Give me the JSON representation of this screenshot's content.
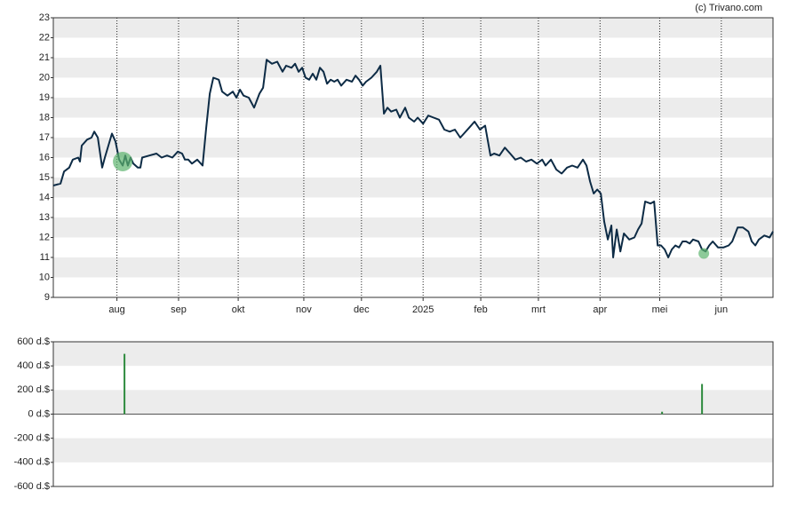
{
  "chart_data": [
    {
      "type": "line",
      "source": "(c) Trivano.com",
      "color": "#0d2b45",
      "marker_color": "#5cb46e",
      "x": [
        0,
        3.6,
        5.4,
        8.0,
        9.8,
        12.5,
        13.4,
        14.3,
        17.0,
        19.2,
        20.6,
        22.4,
        24.6,
        25.9,
        27.7,
        29.5,
        31.3,
        33.1,
        34.9,
        36.2,
        37.5,
        38.9,
        40.2,
        42.5,
        43.8,
        44.7,
        48.3,
        51.9,
        54.5,
        57.2,
        59.9,
        62.6,
        64.8,
        66.2,
        67.9,
        69.7,
        72.4,
        75.1,
        76.9,
        78.7,
        80.5,
        83.2,
        84.9,
        87.6,
        90.3,
        92.1,
        93.9,
        95.7,
        98.3,
        101.0,
        103.7,
        105.5,
        107.3,
        110.0,
        112.6,
        115.3,
        117.1,
        119.8,
        121.6,
        123.4,
        125.2,
        126.9,
        128.7,
        130.5,
        132.3,
        134.1,
        135.9,
        137.7,
        139.5,
        141.3,
        143.0,
        144.8,
        147.5,
        150.2,
        152.0,
        153.8,
        155.6,
        157.3,
        160.0,
        162.7,
        164.5,
        166.3,
        168.1,
        169.9,
        172.5,
        174.3,
        177.0,
        178.8,
        181.5,
        183.3,
        186.0,
        188.6,
        191.3,
        194.0,
        196.7,
        199.4,
        202.0,
        204.7,
        206.5,
        209.2,
        211.9,
        214.6,
        217.2,
        219.9,
        221.7,
        224.4,
        227.1,
        229.8,
        232.4,
        235.1,
        237.8,
        240.5,
        243.2,
        245.9,
        247.6,
        250.3,
        253.0,
        255.7,
        258.4,
        261.0,
        263.7,
        266.4,
        268.2,
        270.0,
        271.8,
        273.6,
        275.4,
        277.1,
        278.9,
        280.7,
        281.6,
        283.4,
        285.2,
        287.0,
        289.7,
        292.3,
        294.1,
        295.9,
        297.7,
        300.4,
        302.2,
        304.0,
        305.7,
        307.5,
        309.3,
        311.1,
        312.9,
        314.7,
        316.5,
        318.3,
        320.1,
        321.8,
        324.5,
        326.3,
        328.1,
        329.9,
        331.7,
        334.4,
        337.0,
        339.7,
        341.5,
        344.2,
        346.9,
        349.6,
        351.3,
        353.1,
        354.9,
        357.6,
        360.3,
        362
      ],
      "values": [
        14.6,
        14.7,
        15.3,
        15.5,
        15.9,
        16.0,
        15.8,
        16.6,
        16.9,
        17.0,
        17.3,
        17.0,
        15.5,
        16.0,
        16.6,
        17.2,
        16.8,
        15.9,
        15.6,
        16.1,
        15.6,
        16.0,
        15.7,
        15.5,
        15.5,
        16.0,
        16.1,
        16.2,
        16.0,
        16.1,
        16.0,
        16.3,
        16.2,
        15.9,
        15.9,
        15.7,
        15.9,
        15.6,
        17.5,
        19.2,
        20.0,
        19.9,
        19.3,
        19.1,
        19.3,
        19.0,
        19.4,
        19.1,
        19.0,
        18.5,
        19.2,
        19.5,
        20.9,
        20.7,
        20.8,
        20.3,
        20.6,
        20.5,
        20.7,
        20.3,
        20.5,
        20.0,
        19.9,
        20.2,
        19.9,
        20.5,
        20.3,
        19.7,
        19.9,
        19.8,
        19.9,
        19.6,
        19.9,
        19.8,
        20.1,
        19.9,
        19.6,
        19.8,
        20.0,
        20.3,
        20.6,
        18.2,
        18.5,
        18.3,
        18.4,
        18.0,
        18.5,
        18.0,
        17.8,
        18.0,
        17.7,
        18.1,
        18.0,
        17.9,
        17.4,
        17.3,
        17.4,
        17.0,
        17.2,
        17.5,
        17.8,
        17.4,
        17.6,
        16.1,
        16.2,
        16.1,
        16.5,
        16.2,
        15.9,
        16.0,
        15.8,
        15.9,
        15.7,
        15.9,
        15.6,
        15.9,
        15.4,
        15.2,
        15.5,
        15.6,
        15.5,
        15.9,
        15.6,
        14.8,
        14.2,
        14.4,
        14.2,
        12.8,
        11.9,
        12.6,
        11.0,
        12.4,
        11.3,
        12.2,
        11.9,
        12.0,
        12.4,
        12.7,
        13.8,
        13.7,
        13.8,
        11.6,
        11.6,
        11.4,
        11.0,
        11.4,
        11.6,
        11.5,
        11.8,
        11.8,
        11.7,
        11.9,
        11.8,
        11.4,
        11.3,
        11.6,
        11.8,
        11.5,
        11.5,
        11.6,
        11.8,
        12.5,
        12.5,
        12.3,
        11.8,
        11.6,
        11.9,
        12.1,
        12.0,
        12.3
      ],
      "markers": {
        "x": [
          34.9,
          327.2
        ],
        "values": [
          15.8,
          11.2
        ]
      },
      "xlim": [
        0,
        362
      ],
      "xticks": [
        {
          "value": 32,
          "label": "aug"
        },
        {
          "value": 63,
          "label": "sep"
        },
        {
          "value": 93,
          "label": "okt"
        },
        {
          "value": 126,
          "label": "nov"
        },
        {
          "value": 155,
          "label": "dec"
        },
        {
          "value": 186,
          "label": "2025"
        },
        {
          "value": 215,
          "label": "feb"
        },
        {
          "value": 244,
          "label": "mrt"
        },
        {
          "value": 275,
          "label": "apr"
        },
        {
          "value": 305,
          "label": "mei"
        },
        {
          "value": 336,
          "label": "jun"
        }
      ],
      "ylim": [
        9,
        23
      ],
      "yticks": [
        9,
        10,
        11,
        12,
        13,
        14,
        15,
        16,
        17,
        18,
        19,
        20,
        21,
        22,
        23
      ],
      "grid": true
    },
    {
      "type": "bar",
      "color": "#2e8b3e",
      "x": [
        35.8,
        306.2,
        326.3
      ],
      "values": [
        500,
        20,
        250
      ],
      "xlim": [
        0,
        362
      ],
      "ylim": [
        -600,
        600
      ],
      "yticks": [
        {
          "value": -600,
          "label": "-600 d.$"
        },
        {
          "value": -400,
          "label": "-400 d.$"
        },
        {
          "value": -200,
          "label": "-200 d.$"
        },
        {
          "value": 0,
          "label": "0 d.$"
        },
        {
          "value": 200,
          "label": "200 d.$"
        },
        {
          "value": 400,
          "label": "400 d.$"
        },
        {
          "value": 600,
          "label": "600 d.$"
        }
      ],
      "grid": true
    }
  ]
}
